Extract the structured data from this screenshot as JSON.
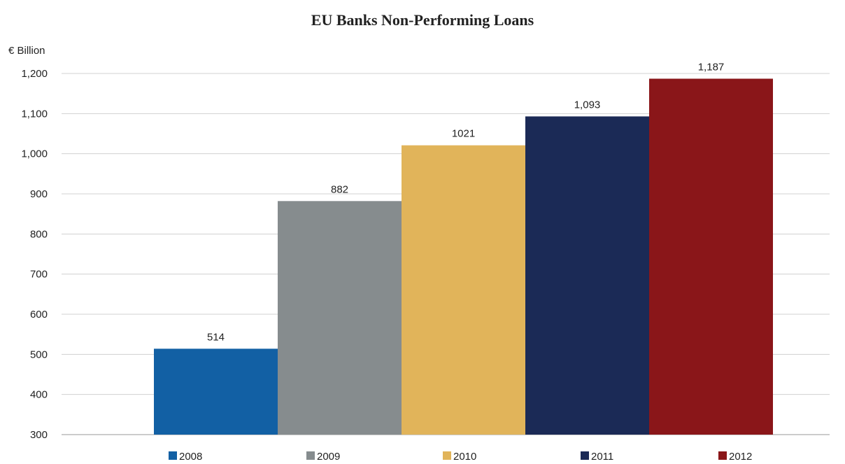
{
  "chart_data": {
    "type": "bar",
    "title": "EU Banks Non-Performing Loans",
    "ylabel": "€ Billion",
    "xlabel": "",
    "categories": [
      "2008",
      "2009",
      "2010",
      "2011",
      "2012"
    ],
    "values": [
      514,
      882,
      1021,
      1093,
      1187
    ],
    "value_labels": [
      "514",
      "882",
      "1021",
      "1,093",
      "1,187"
    ],
    "colors": [
      "#1260A4",
      "#868C8E",
      "#E1B45A",
      "#1B2A56",
      "#8A1619"
    ],
    "ylim": [
      300,
      1200
    ],
    "yticks": [
      300,
      400,
      500,
      600,
      700,
      800,
      900,
      1000,
      1100,
      1200
    ],
    "ytick_labels": [
      "300",
      "400",
      "500",
      "600",
      "700",
      "800",
      "900",
      "1,000",
      "1,100",
      "1,200"
    ],
    "grid": true,
    "legend_position": "bottom"
  }
}
